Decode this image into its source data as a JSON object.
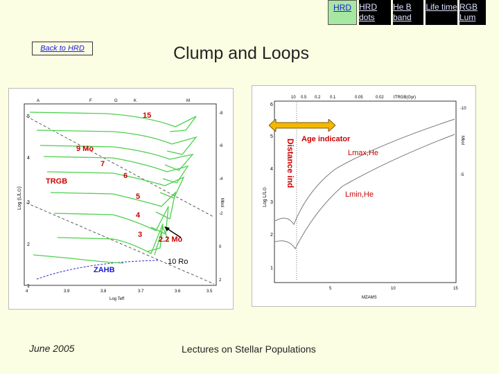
{
  "nav": {
    "hrd": "HRD",
    "hrd_dots": "HRD dots",
    "heb_band": "He B band",
    "life_time": "Life time",
    "rgb_lum": "RGB Lum"
  },
  "back_link": "Back to HRD",
  "title": "Clump and Loops",
  "left_plot": {
    "top_labels": [
      "A",
      "F",
      "G",
      "K",
      "M"
    ],
    "y_labels": [
      "5",
      "4",
      "3",
      "2",
      "1"
    ],
    "y_axis": "Log (L/L⊙)",
    "x_labels": [
      "4",
      "3.9",
      "3.8",
      "3.7",
      "3.6",
      "3.5"
    ],
    "x_axis": "Log Teff",
    "right_labels": [
      "-8",
      "-6",
      "-4",
      "-2",
      "0",
      "2"
    ],
    "right_axis": "Mbol",
    "annotations": {
      "m15": "15",
      "m9": "9 Mo",
      "m7": "7",
      "m6": "6",
      "m5": "5",
      "m4": "4",
      "m3": "3",
      "m22": "2.2 Mo",
      "trgb": "TRGB",
      "zahb": "ZAHB",
      "ten_ro": "10 Ro"
    }
  },
  "right_plot": {
    "top_labels": [
      "10",
      "0.5",
      "0.2",
      "0.1",
      "0.05",
      "0.02"
    ],
    "top_axis": "tTRGB(Gyr)",
    "y_labels": [
      "6",
      "5",
      "4",
      "3",
      "2",
      "1"
    ],
    "y_axis": "Log L/L⊙",
    "x_labels": [
      "5",
      "10",
      "15"
    ],
    "x_axis": "MZAMS",
    "right_labels": [
      "-10",
      "-5"
    ],
    "right_axis": "Mbol",
    "annotations": {
      "age_indicator": "Age indicator",
      "lmax": "Lmax,He",
      "lmin": "Lmin,He",
      "distance": "Distance ind"
    }
  },
  "footer": {
    "date": "June 2005",
    "course": "Lectures on Stellar Populations"
  },
  "colors": {
    "background": "#fbfee2",
    "tracks": "#4cd04c",
    "annotation": "#cc0000",
    "arrow": "#f5b800"
  }
}
